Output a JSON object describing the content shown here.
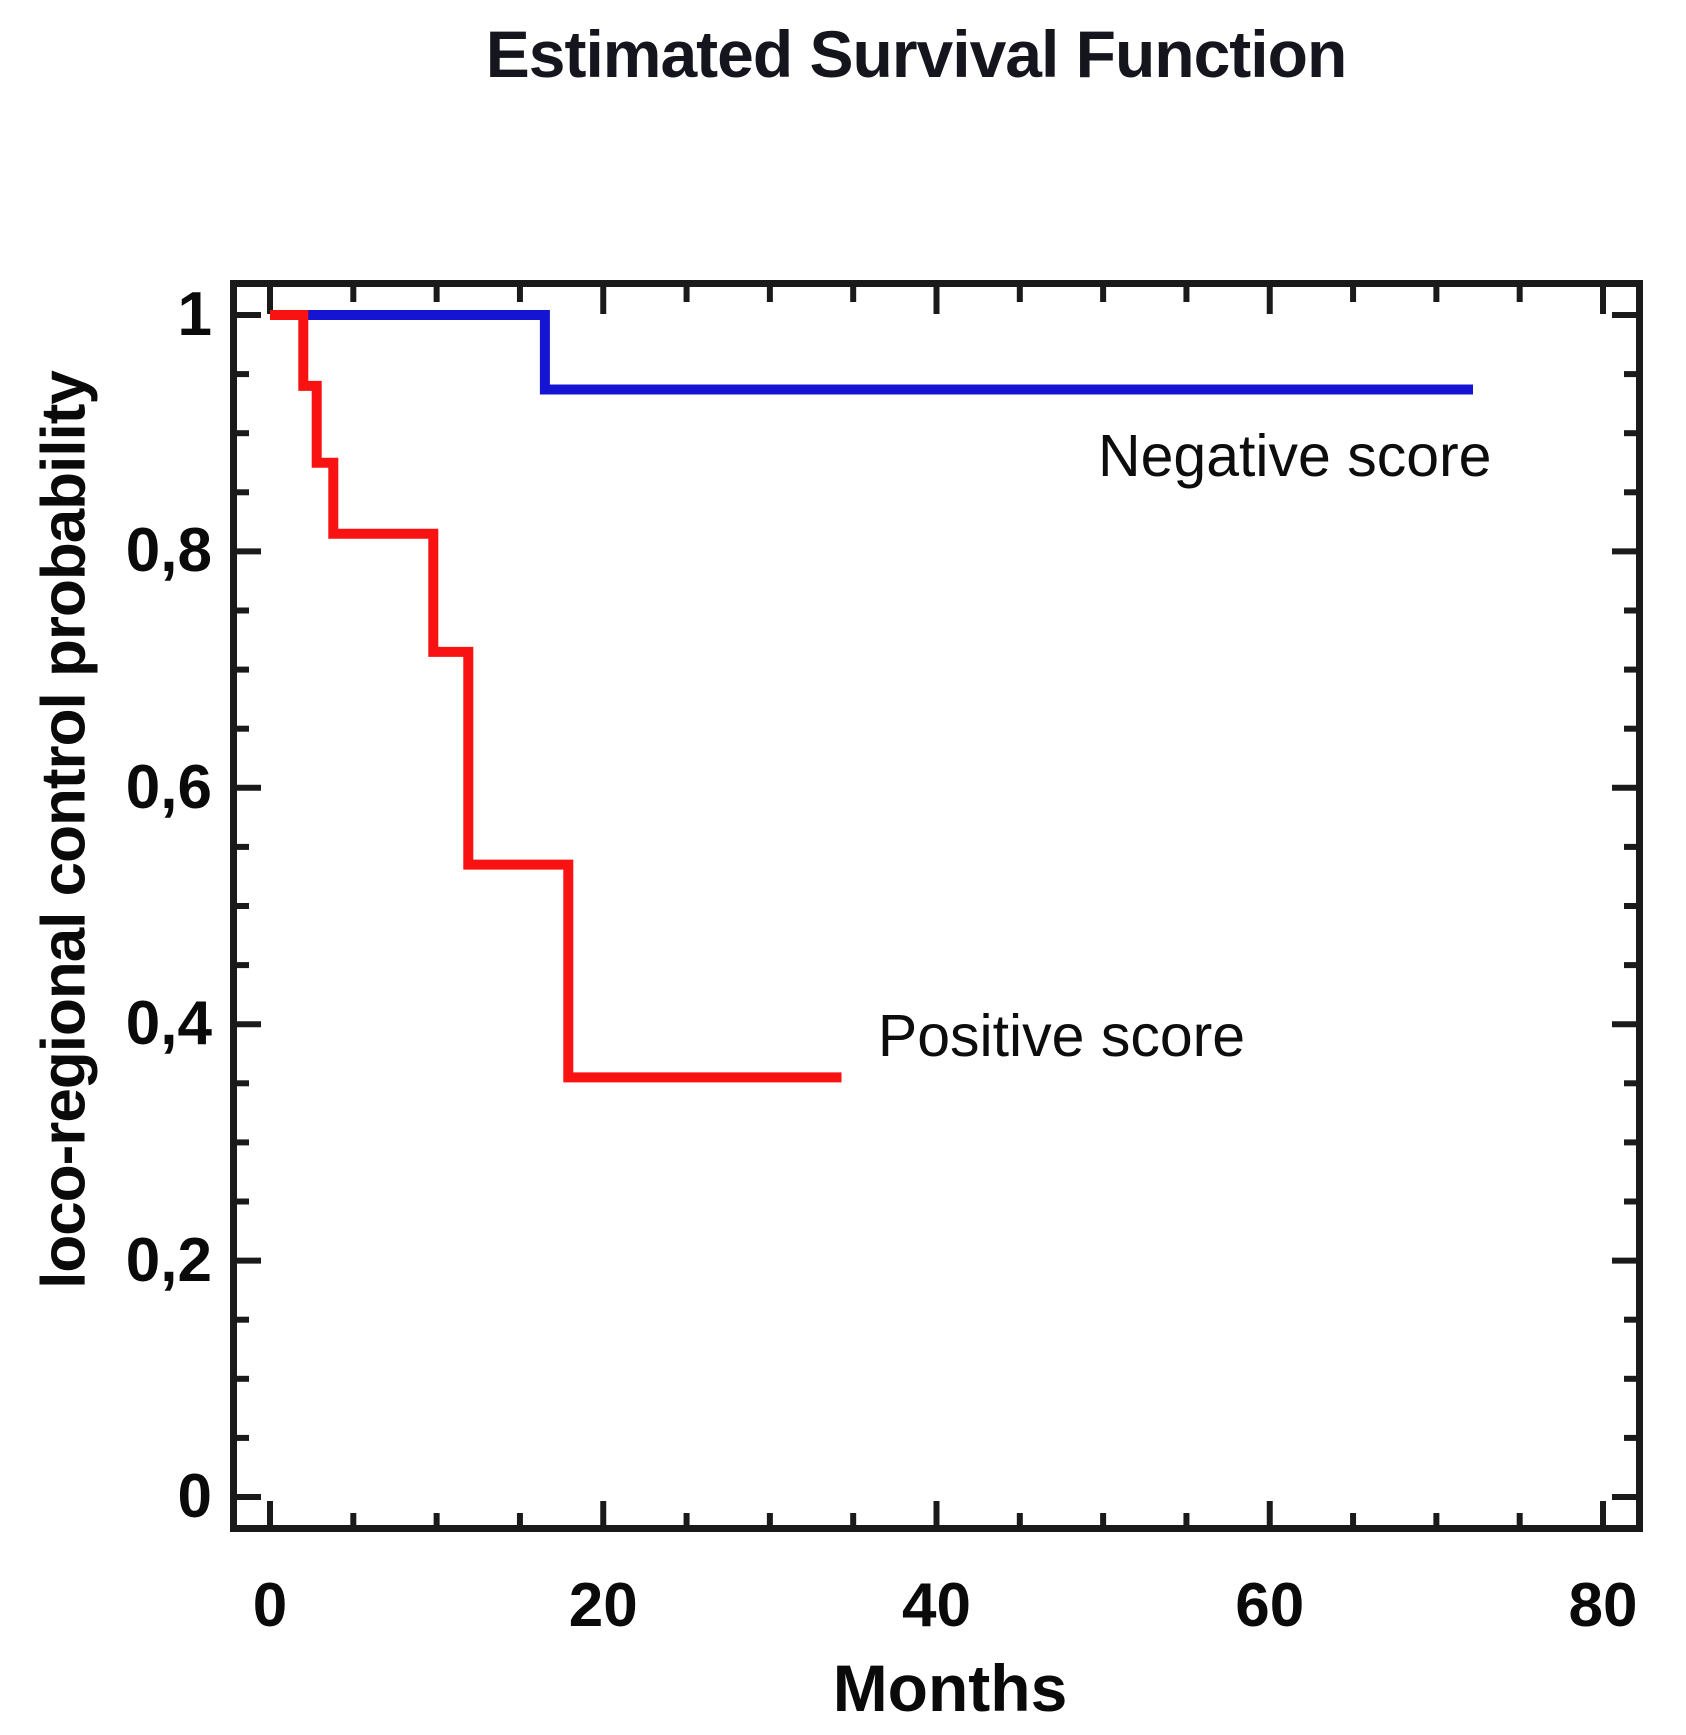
{
  "chart_data": {
    "type": "line",
    "subtype": "kaplan-meier-step",
    "title": "Estimated Survival Function",
    "xlabel": "Months",
    "ylabel": "loco-regional control probability",
    "xlim": [
      0,
      80
    ],
    "ylim": [
      0,
      1
    ],
    "grid": false,
    "x_major_ticks": [
      0,
      20,
      40,
      60,
      80
    ],
    "x_tick_labels": [
      "0",
      "20",
      "40",
      "60",
      "80"
    ],
    "x_minor_tick_step": 5,
    "y_major_ticks": [
      1,
      0.8,
      0.6,
      0.4,
      0.2,
      0
    ],
    "y_tick_labels": [
      "1",
      "0,8",
      "0,6",
      "0,4",
      "0,2",
      "0"
    ],
    "y_minor_tick_step": 0.05,
    "axis_color": "#1a1a1a",
    "legend_position": "inline-annotations",
    "series": [
      {
        "name": "Negative score",
        "color": "#1414d2",
        "points": [
          [
            0,
            1
          ],
          [
            16.5,
            1
          ],
          [
            16.5,
            0.937
          ],
          [
            72.2,
            0.937
          ]
        ]
      },
      {
        "name": "Positive score",
        "color": "#f81212",
        "points": [
          [
            0,
            1
          ],
          [
            2,
            1
          ],
          [
            2,
            0.94
          ],
          [
            2.8,
            0.94
          ],
          [
            2.8,
            0.875
          ],
          [
            3.8,
            0.875
          ],
          [
            3.8,
            0.815
          ],
          [
            9.8,
            0.815
          ],
          [
            9.8,
            0.715
          ],
          [
            11.9,
            0.715
          ],
          [
            11.9,
            0.535
          ],
          [
            17.9,
            0.535
          ],
          [
            17.9,
            0.355
          ],
          [
            34.3,
            0.355
          ]
        ]
      }
    ],
    "annotations": [
      {
        "text": "Negative score",
        "x": 61.5,
        "y": 0.881
      },
      {
        "text": "Positive score",
        "x": 47.5,
        "y": 0.39
      }
    ]
  }
}
